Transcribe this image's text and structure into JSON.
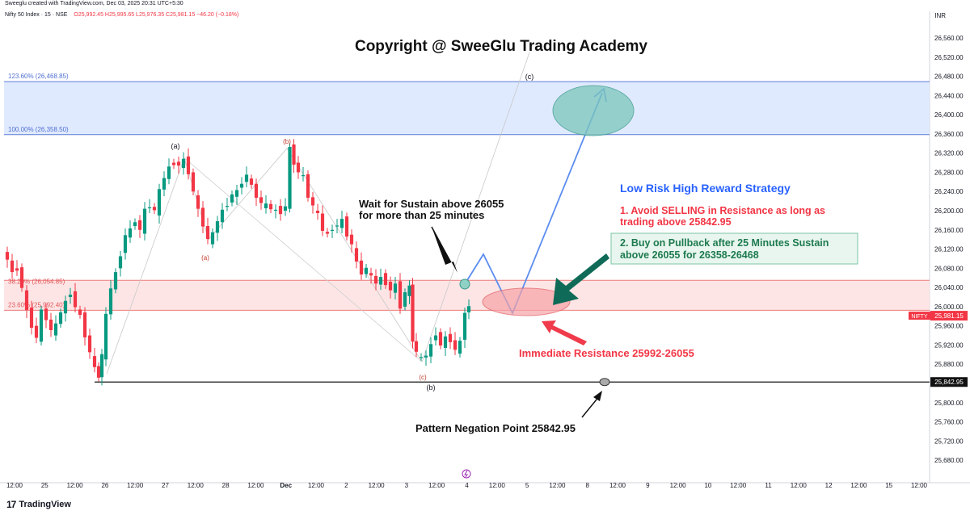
{
  "header": {
    "attribution": "Sweeglu created with TradingView.com, Dec 03, 2025 20:31 UTC+5:30",
    "symbol_line": "Nifty 50 Index · 15 · NSE",
    "ohlc": "O25,992.45  H25,995.65  L25,976.35  C25,981.15  −46.20 (−0.18%)",
    "currency": "INR"
  },
  "title": "Copyright @ SweeGlu Trading Academy",
  "footer": {
    "brand": "TradingView",
    "brand_mark": "17"
  },
  "colors": {
    "up": "#089981",
    "down": "#f23645",
    "target_zone": "#dbe6ff",
    "resistance_zone": "#fde2e2",
    "strategy_blue": "#2962ff",
    "strategy_red": "#f23645",
    "buy_box": "#e8f6ef",
    "buy_text": "#1e7a4f",
    "arrow_green": "#0f6b57"
  },
  "chart_data": {
    "type": "candlestick",
    "ylim": [
      25660,
      26560
    ],
    "y_ticks": [
      "26,560.00",
      "26,520.00",
      "26,480.00",
      "26,440.00",
      "26,400.00",
      "26,360.00",
      "26,320.00",
      "26,280.00",
      "26,240.00",
      "26,200.00",
      "26,160.00",
      "26,120.00",
      "26,080.00",
      "26,040.00",
      "26,000.00",
      "25,960.00",
      "25,920.00",
      "25,880.00",
      "25,840.00",
      "25,800.00",
      "25,760.00",
      "25,720.00",
      "25,680.00"
    ],
    "x_ticks": [
      "12:00",
      "25",
      "12:00",
      "26",
      "12:00",
      "27",
      "12:00",
      "28",
      "12:00",
      "Dec",
      "12:00",
      "2",
      "12:00",
      "3",
      "12:00",
      "4",
      "12:00",
      "5",
      "12:00",
      "8",
      "12:00",
      "9",
      "12:00",
      "10",
      "12:00",
      "11",
      "12:00",
      "12",
      "12:00",
      "15",
      "12:00"
    ],
    "price_label": "NIFTY",
    "last_price": "25,981.15",
    "negation_label": "25,842.95",
    "fib_levels": [
      {
        "label": "123.60% (26,468.85)",
        "value": 26468.85
      },
      {
        "label": "100.00% (26,358.50)",
        "value": 26358.5
      },
      {
        "label": "38.20% (26,054.85)",
        "value": 26054.85
      },
      {
        "label": "23.60% (25,992.40)",
        "value": 25992.4
      }
    ],
    "wave_labels": [
      "(a)",
      "(b)",
      "(a)",
      "(c)",
      "(b)",
      "(c)"
    ],
    "path": [
      [
        0,
        26110
      ],
      [
        6,
        26100
      ],
      [
        12,
        26070
      ],
      [
        18,
        26080
      ],
      [
        24,
        26040
      ],
      [
        30,
        25990
      ],
      [
        36,
        25960
      ],
      [
        42,
        25935
      ],
      [
        48,
        25990
      ],
      [
        54,
        25975
      ],
      [
        60,
        25950
      ],
      [
        66,
        25960
      ],
      [
        72,
        25990
      ],
      [
        78,
        26010
      ],
      [
        84,
        26030
      ],
      [
        90,
        26000
      ],
      [
        96,
        25980
      ],
      [
        102,
        25940
      ],
      [
        108,
        25905
      ],
      [
        114,
        25870
      ],
      [
        118,
        25855
      ],
      [
        122,
        25900
      ],
      [
        128,
        25980
      ],
      [
        134,
        26040
      ],
      [
        140,
        26070
      ],
      [
        146,
        26110
      ],
      [
        152,
        26150
      ],
      [
        158,
        26160
      ],
      [
        164,
        26180
      ],
      [
        170,
        26160
      ],
      [
        176,
        26200
      ],
      [
        182,
        26210
      ],
      [
        188,
        26200
      ],
      [
        194,
        26240
      ],
      [
        200,
        26270
      ],
      [
        206,
        26290
      ],
      [
        212,
        26300
      ],
      [
        218,
        26295
      ],
      [
        224,
        26305
      ],
      [
        230,
        26280
      ],
      [
        236,
        26240
      ],
      [
        242,
        26200
      ],
      [
        248,
        26170
      ],
      [
        254,
        26140
      ],
      [
        260,
        26150
      ],
      [
        266,
        26180
      ],
      [
        272,
        26200
      ],
      [
        278,
        26215
      ],
      [
        284,
        26235
      ],
      [
        290,
        26240
      ],
      [
        296,
        26260
      ],
      [
        302,
        26275
      ],
      [
        308,
        26250
      ],
      [
        314,
        26230
      ],
      [
        320,
        26215
      ],
      [
        326,
        26210
      ],
      [
        332,
        26205
      ],
      [
        338,
        26200
      ],
      [
        344,
        26198
      ],
      [
        350,
        26210
      ],
      [
        355,
        26330
      ],
      [
        360,
        26300
      ],
      [
        366,
        26280
      ],
      [
        372,
        26270
      ],
      [
        378,
        26230
      ],
      [
        384,
        26210
      ],
      [
        390,
        26190
      ],
      [
        396,
        26160
      ],
      [
        402,
        26150
      ],
      [
        408,
        26165
      ],
      [
        414,
        26170
      ],
      [
        420,
        26180
      ],
      [
        426,
        26150
      ],
      [
        432,
        26130
      ],
      [
        438,
        26090
      ],
      [
        444,
        26070
      ],
      [
        450,
        26080
      ],
      [
        456,
        26060
      ],
      [
        462,
        26050
      ],
      [
        468,
        26060
      ],
      [
        474,
        26050
      ],
      [
        480,
        26035
      ],
      [
        486,
        26045
      ],
      [
        492,
        26000
      ],
      [
        498,
        26030
      ],
      [
        503,
        26040
      ],
      [
        506,
        25930
      ],
      [
        512,
        25905
      ],
      [
        518,
        25890
      ],
      [
        524,
        25900
      ],
      [
        530,
        25920
      ],
      [
        536,
        25945
      ],
      [
        542,
        25920
      ],
      [
        548,
        25935
      ],
      [
        554,
        25930
      ],
      [
        560,
        25910
      ],
      [
        566,
        25925
      ],
      [
        572,
        25990
      ],
      [
        576,
        26000
      ]
    ]
  },
  "annotations": {
    "wait_text_1": "Wait for Sustain above 26055",
    "wait_text_2": "for more than 25 minutes",
    "strategy_title": "Low Risk High Reward Strategy",
    "strategy_1a": "1. Avoid SELLING in Resistance as long as",
    "strategy_1b": "trading above  25842.95",
    "strategy_2a": "2. Buy on Pullback after 25 Minutes Sustain",
    "strategy_2b": "above 26055 for 26358-26468",
    "resistance": "Immediate Resistance 25992-26055",
    "negation": "Pattern Negation Point 25842.95",
    "wave_c_target": "(c)"
  }
}
